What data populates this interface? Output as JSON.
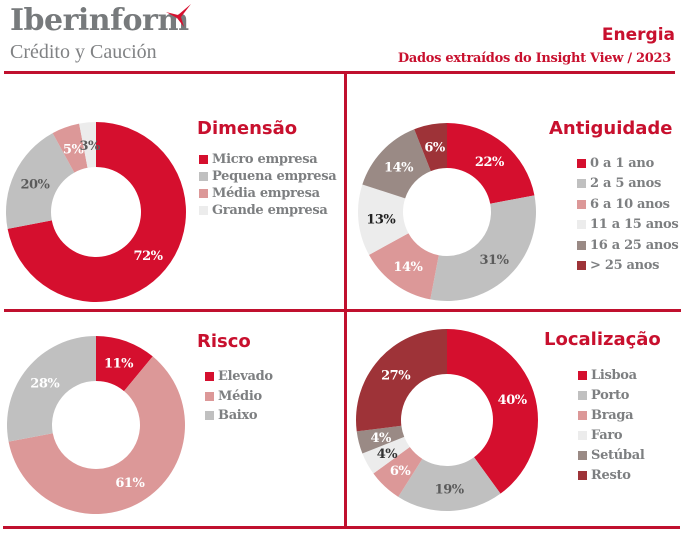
{
  "header": {
    "logo_name": "Iberinform",
    "logo_subtitle": "Crédito y Caución",
    "logo_icon": "propeller-flag-icon",
    "title": "Energia",
    "subtitle": "Dados extraídos do Insight View / 2023"
  },
  "colors": {
    "brand": "#c8102e",
    "rule": "#c0102e",
    "legend_text": "#7d7f81"
  },
  "chart_data": [
    {
      "id": "dimensao",
      "type": "pie",
      "variant": "donut",
      "title": "Dimensão",
      "categories": [
        "Micro empresa",
        "Pequena empresa",
        "Média empresa",
        "Grande empresa"
      ],
      "values": [
        72,
        20,
        5,
        3
      ],
      "labels": [
        "72%",
        "20%",
        "5%",
        "3%"
      ],
      "colors": [
        "#d50f2e",
        "#c0c0c0",
        "#dc9898",
        "#ececec"
      ],
      "label_colors": [
        "#ffffff",
        "#5b5b5b",
        "#ffffff",
        "#5b5b5b"
      ],
      "legend": "right"
    },
    {
      "id": "antiguidade",
      "type": "pie",
      "variant": "donut",
      "title": "Antiguidade",
      "categories": [
        "0 a 1 ano",
        "2 a 5 anos",
        "6 a 10 anos",
        "11 a 15 anos",
        "16 a 25 anos",
        "> 25 anos"
      ],
      "values": [
        22,
        31,
        14,
        13,
        14,
        6
      ],
      "labels": [
        "22%",
        "31%",
        "14%",
        "13%",
        "14%",
        "6%"
      ],
      "colors": [
        "#d50f2e",
        "#c0c0c0",
        "#dc9898",
        "#ececec",
        "#9a8a85",
        "#9e3338"
      ],
      "label_colors": [
        "#ffffff",
        "#5b5b5b",
        "#ffffff",
        "#222222",
        "#ffffff",
        "#ffffff"
      ],
      "legend": "right"
    },
    {
      "id": "risco",
      "type": "pie",
      "variant": "donut",
      "title": "Risco",
      "categories": [
        "Elevado",
        "Médio",
        "Baixo"
      ],
      "values": [
        11,
        61,
        28
      ],
      "labels": [
        "11%",
        "61%",
        "28%"
      ],
      "colors": [
        "#d50f2e",
        "#dc9898",
        "#c0c0c0"
      ],
      "label_colors": [
        "#ffffff",
        "#ffffff",
        "#ffffff"
      ],
      "legend": "right"
    },
    {
      "id": "localizacao",
      "type": "pie",
      "variant": "donut",
      "title": "Localização",
      "categories": [
        "Lisboa",
        "Porto",
        "Braga",
        "Faro",
        "Setúbal",
        "Resto"
      ],
      "values": [
        40,
        19,
        6,
        4,
        4,
        27
      ],
      "labels": [
        "40%",
        "19%",
        "6%",
        "4%",
        "4%",
        "27%"
      ],
      "colors": [
        "#d50f2e",
        "#c0c0c0",
        "#dc9898",
        "#ececec",
        "#9a8a85",
        "#9e3338"
      ],
      "label_colors": [
        "#ffffff",
        "#5b5b5b",
        "#ffffff",
        "#333333",
        "#ffffff",
        "#ffffff"
      ],
      "legend": "right"
    }
  ]
}
